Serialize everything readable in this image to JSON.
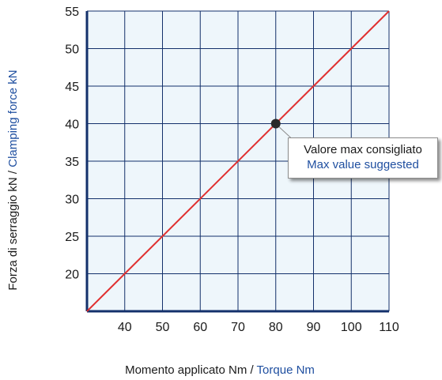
{
  "colors": {
    "axis": "#13306b",
    "grid": "#13306b",
    "plot_bg": "#eef6fb",
    "line": "#e03030",
    "marker": "#2a2a2a",
    "label_dark": "#1a1a1a",
    "label_blue": "#1f4fa0"
  },
  "chart_data": {
    "type": "line",
    "title": "",
    "xlabel_it": "Momento applicato Nm / ",
    "xlabel_en": "Torque Nm",
    "ylabel_it": "Forza di serraggio kN  /  ",
    "ylabel_en": "Clamping force kN",
    "xlim": [
      30,
      110
    ],
    "ylim": [
      15,
      55
    ],
    "x_ticks": [
      40,
      50,
      60,
      70,
      80,
      90,
      100,
      110
    ],
    "y_ticks": [
      20,
      25,
      30,
      35,
      40,
      45,
      50,
      55
    ],
    "grid": true,
    "series": [
      {
        "x": [
          30,
          110
        ],
        "y": [
          15,
          55
        ]
      }
    ],
    "marker_point": {
      "x": 80,
      "y": 40
    },
    "annotation": {
      "line1": "Valore max consigliato",
      "line2": "Max value suggested"
    }
  }
}
